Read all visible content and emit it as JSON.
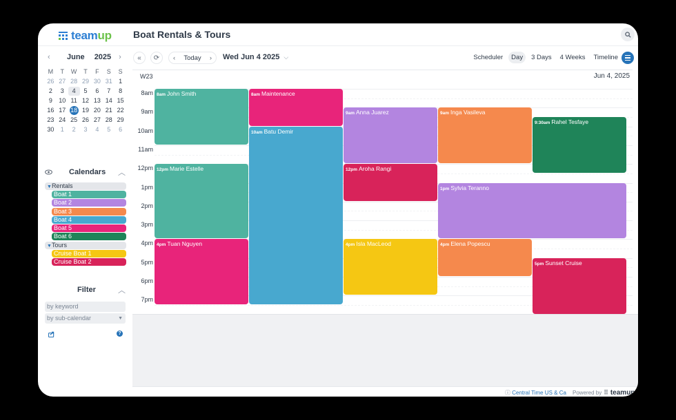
{
  "header": {
    "logo_text_a": "team",
    "logo_text_b": "up",
    "title": "Boat Rentals & Tours",
    "search_icon": "search-icon"
  },
  "mini_calendar": {
    "month": "June",
    "year": "2025",
    "prev": "‹",
    "next": "›",
    "weekdays": [
      "M",
      "T",
      "W",
      "T",
      "F",
      "S",
      "S"
    ],
    "days": [
      {
        "d": "26",
        "o": true
      },
      {
        "d": "27",
        "o": true
      },
      {
        "d": "28",
        "o": true
      },
      {
        "d": "29",
        "o": true
      },
      {
        "d": "30",
        "o": true
      },
      {
        "d": "31",
        "o": true
      },
      {
        "d": "1"
      },
      {
        "d": "2"
      },
      {
        "d": "3"
      },
      {
        "d": "4",
        "sel": true
      },
      {
        "d": "5"
      },
      {
        "d": "6"
      },
      {
        "d": "7"
      },
      {
        "d": "8"
      },
      {
        "d": "9"
      },
      {
        "d": "10"
      },
      {
        "d": "11"
      },
      {
        "d": "12"
      },
      {
        "d": "13"
      },
      {
        "d": "14"
      },
      {
        "d": "15"
      },
      {
        "d": "16"
      },
      {
        "d": "17"
      },
      {
        "d": "18",
        "today": true
      },
      {
        "d": "19"
      },
      {
        "d": "20"
      },
      {
        "d": "21"
      },
      {
        "d": "22"
      },
      {
        "d": "23"
      },
      {
        "d": "24"
      },
      {
        "d": "25"
      },
      {
        "d": "26"
      },
      {
        "d": "27"
      },
      {
        "d": "28"
      },
      {
        "d": "29"
      },
      {
        "d": "30"
      },
      {
        "d": "1",
        "o": true
      },
      {
        "d": "2",
        "o": true
      },
      {
        "d": "3",
        "o": true
      },
      {
        "d": "4",
        "o": true
      },
      {
        "d": "5",
        "o": true
      },
      {
        "d": "6",
        "o": true
      }
    ]
  },
  "calendars": {
    "heading": "Calendars",
    "groups": [
      {
        "label": "Rentals",
        "items": [
          {
            "label": "Boat 1",
            "color": "#4fb3a0"
          },
          {
            "label": "Boat 2",
            "color": "#b385e0"
          },
          {
            "label": "Boat 3",
            "color": "#f5894d"
          },
          {
            "label": "Boat 4",
            "color": "#48a8cf"
          },
          {
            "label": "Boat 5",
            "color": "#e8247a"
          },
          {
            "label": "Boat 6",
            "color": "#1f8459"
          }
        ]
      },
      {
        "label": "Tours",
        "items": [
          {
            "label": "Cruise Boat 1",
            "color": "#f5c713"
          },
          {
            "label": "Cruise Boat 2",
            "color": "#d8235a"
          }
        ]
      }
    ]
  },
  "filter": {
    "heading": "Filter",
    "keyword_placeholder": "by keyword",
    "subcalendar_placeholder": "by sub-calendar"
  },
  "toolbar": {
    "today_label": "Today",
    "current_date": "Wed Jun 4 2025",
    "views": [
      "Scheduler",
      "Day",
      "3 Days",
      "4 Weeks",
      "Timeline"
    ],
    "active_view": "Day"
  },
  "day_view": {
    "week": "W23",
    "date": "Jun 4, 2025",
    "hours": [
      "8am",
      "9am",
      "10am",
      "11am",
      "12pm",
      "1pm",
      "2pm",
      "3pm",
      "4pm",
      "5pm",
      "6pm",
      "7pm"
    ],
    "events": [
      {
        "time": "8am",
        "title": "John Smith",
        "col": 0,
        "span": 1,
        "start": 8,
        "end": 11,
        "color": "#4fb3a0"
      },
      {
        "time": "12pm",
        "title": "Marie Estelle",
        "col": 0,
        "span": 1,
        "start": 12,
        "end": 16,
        "color": "#4fb3a0"
      },
      {
        "time": "4pm",
        "title": "Tuan Nguyen",
        "col": 0,
        "span": 1,
        "start": 16,
        "end": 19.5,
        "color": "#e8247a"
      },
      {
        "time": "8am",
        "title": "Maintenance",
        "col": 1,
        "span": 1,
        "start": 8,
        "end": 10,
        "color": "#e8247a"
      },
      {
        "time": "10am",
        "title": "Batu Demir",
        "col": 1,
        "span": 1,
        "start": 10,
        "end": 19.5,
        "color": "#48a8cf"
      },
      {
        "time": "9am",
        "title": "Anna Juarez",
        "col": 2,
        "span": 1,
        "start": 9,
        "end": 12,
        "color": "#b385e0"
      },
      {
        "time": "12pm",
        "title": "Aroha Rangi",
        "col": 2,
        "span": 1,
        "start": 12,
        "end": 14,
        "color": "#d8235a"
      },
      {
        "time": "4pm",
        "title": "Isla MacLeod",
        "col": 2,
        "span": 1,
        "start": 16,
        "end": 19,
        "color": "#f5c713"
      },
      {
        "time": "9am",
        "title": "Inga Vasileva",
        "col": 3,
        "span": 1,
        "start": 9,
        "end": 12,
        "color": "#f5894d"
      },
      {
        "time": "1pm",
        "title": "Sylvia Teranno",
        "col": 3,
        "span": 2,
        "start": 13,
        "end": 16,
        "color": "#b385e0"
      },
      {
        "time": "4pm",
        "title": "Elena Popescu",
        "col": 3,
        "span": 1,
        "start": 16,
        "end": 18,
        "color": "#f5894d"
      },
      {
        "time": "9:30am",
        "title": "Rahel Tesfaye",
        "col": 4,
        "span": 1,
        "start": 9.5,
        "end": 12.5,
        "color": "#1f8459"
      },
      {
        "time": "5pm",
        "title": "Sunset Cruise",
        "col": 4,
        "span": 1,
        "start": 17,
        "end": 20,
        "color": "#d8235a"
      }
    ]
  },
  "footer": {
    "timezone": "Central Time US & Ca",
    "powered_by": "Powered by",
    "brand": "teamup"
  }
}
